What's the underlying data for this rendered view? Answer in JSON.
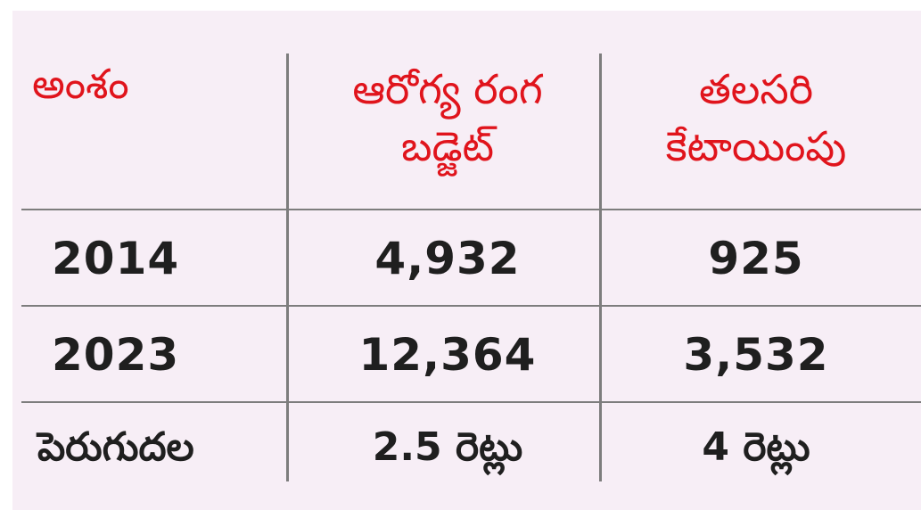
{
  "table": {
    "headers": [
      "అంశం",
      "ఆరోగ్య రంగ బడ్జెట్",
      "తలసరి కేటాయింపు"
    ],
    "header_lines": [
      [
        "అంశం"
      ],
      [
        "ఆరోగ్య రంగ",
        "బడ్జెట్"
      ],
      [
        "తలసరి",
        "కేటాయింపు"
      ]
    ],
    "rows": [
      [
        "2014",
        "4,932",
        "925"
      ],
      [
        "2023",
        "12,364",
        "3,532"
      ],
      [
        "పెరుగుదల",
        "2.5 రెట్లు",
        "4 రెట్లు"
      ]
    ]
  },
  "colors": {
    "header_text": "#e0141c",
    "body_text": "#1f1f1f",
    "background": "#f7eef6",
    "divider": "#7d7d7d"
  }
}
